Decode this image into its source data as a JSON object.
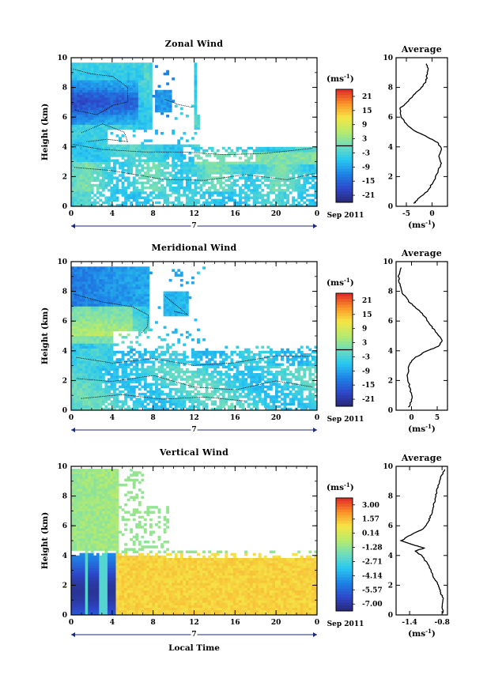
{
  "chart_data": [
    {
      "type": "heatmap",
      "title": "Zonal Wind",
      "ylabel": "Height (km)",
      "xlabel": "",
      "x_ticks": [
        "0",
        "4",
        "8",
        "12",
        "16",
        "20",
        "0"
      ],
      "y_ticks": [
        "0",
        "2",
        "4",
        "6",
        "8",
        "10"
      ],
      "xlim": [
        0,
        24
      ],
      "ylim": [
        0,
        10
      ],
      "date_marker": "7",
      "date_label": "Sep 2011",
      "colorbar": {
        "unit_base": "(ms",
        "unit_exp": "-1",
        "unit_close": ")",
        "ticks": [
          "21",
          "15",
          "9",
          "3",
          "-3",
          "-9",
          "-15",
          "-21"
        ],
        "range": [
          -24,
          24
        ],
        "zero_level": 0
      },
      "profile": {
        "title": "Average",
        "xlabel_base": "(ms",
        "xlabel_exp": "-1",
        "xlabel_close": ")",
        "x_ticks": [
          "-5",
          "0"
        ],
        "xlim": [
          -7,
          3
        ],
        "ylim": [
          0,
          10
        ],
        "y_ticks": [
          "0",
          "2",
          "4",
          "6",
          "8",
          "10"
        ],
        "points": [
          [
            -3.5,
            0.2
          ],
          [
            -2.8,
            0.5
          ],
          [
            -1.0,
            1.0
          ],
          [
            0.2,
            1.6
          ],
          [
            1.2,
            2.4
          ],
          [
            1.8,
            2.9
          ],
          [
            1.3,
            3.4
          ],
          [
            1.8,
            3.9
          ],
          [
            1.0,
            4.3
          ],
          [
            -0.5,
            4.6
          ],
          [
            -3.0,
            5.0
          ],
          [
            -5.0,
            5.5
          ],
          [
            -6.0,
            6.0
          ],
          [
            -6.2,
            6.6
          ],
          [
            -4.8,
            7.0
          ],
          [
            -3.5,
            7.5
          ],
          [
            -2.0,
            8.0
          ],
          [
            -1.2,
            8.4
          ],
          [
            -1.0,
            8.8
          ],
          [
            -0.8,
            9.2
          ],
          [
            -1.1,
            9.6
          ]
        ]
      }
    },
    {
      "type": "heatmap",
      "title": "Meridional Wind",
      "ylabel": "Height (km)",
      "xlabel": "",
      "x_ticks": [
        "0",
        "4",
        "8",
        "12",
        "16",
        "20",
        "0"
      ],
      "y_ticks": [
        "0",
        "2",
        "4",
        "6",
        "8",
        "10"
      ],
      "xlim": [
        0,
        24
      ],
      "ylim": [
        0,
        10
      ],
      "date_marker": "7",
      "date_label": "Sep 2011",
      "colorbar": {
        "unit_base": "(ms",
        "unit_exp": "-1",
        "unit_close": ")",
        "ticks": [
          "21",
          "15",
          "9",
          "3",
          "-3",
          "-9",
          "-15",
          "-21"
        ],
        "range": [
          -24,
          24
        ],
        "zero_level": 0
      },
      "profile": {
        "title": "Average",
        "xlabel_base": "(ms",
        "xlabel_exp": "-1",
        "xlabel_close": ")",
        "x_ticks": [
          "0",
          "5"
        ],
        "xlim": [
          -3,
          7
        ],
        "ylim": [
          0,
          10
        ],
        "y_ticks": [
          "0",
          "2",
          "4",
          "6",
          "8",
          "10"
        ],
        "points": [
          [
            -0.5,
            0.2
          ],
          [
            0.2,
            0.8
          ],
          [
            -0.3,
            1.5
          ],
          [
            -0.8,
            2.2
          ],
          [
            -0.5,
            3.0
          ],
          [
            0.5,
            3.5
          ],
          [
            2.5,
            3.9
          ],
          [
            5.2,
            4.3
          ],
          [
            6.0,
            4.7
          ],
          [
            4.8,
            5.2
          ],
          [
            3.8,
            5.7
          ],
          [
            2.8,
            6.2
          ],
          [
            1.2,
            6.8
          ],
          [
            -0.5,
            7.3
          ],
          [
            -1.8,
            7.9
          ],
          [
            -2.3,
            8.5
          ],
          [
            -2.5,
            9.0
          ],
          [
            -2.0,
            9.6
          ]
        ]
      }
    },
    {
      "type": "heatmap",
      "title": "Vertical Wind",
      "ylabel": "Height (km)",
      "xlabel": "Local Time",
      "x_ticks": [
        "0",
        "4",
        "8",
        "12",
        "16",
        "20",
        "0"
      ],
      "y_ticks": [
        "0",
        "2",
        "4",
        "6",
        "8",
        "10"
      ],
      "xlim": [
        0,
        24
      ],
      "ylim": [
        0,
        10
      ],
      "date_marker": "7",
      "date_label": "Sep 2011",
      "colorbar": {
        "unit_base": "(ms",
        "unit_exp": "-1",
        "unit_close": ")",
        "ticks": [
          "3.00",
          "1.57",
          "0.14",
          "-1.28",
          "-2.71",
          "-4.14",
          "-5.57",
          "-7.00"
        ],
        "range": [
          -7.7,
          3.7
        ]
      },
      "profile": {
        "title": "Average",
        "xlabel_base": "(ms",
        "xlabel_exp": "-1",
        "xlabel_close": ")",
        "x_ticks": [
          "-1.4",
          "-0.8"
        ],
        "xlim": [
          -1.65,
          -0.7
        ],
        "ylim": [
          0,
          10
        ],
        "y_ticks": [
          "0",
          "2",
          "4",
          "6",
          "8",
          "10"
        ],
        "points": [
          [
            -0.78,
            0.1
          ],
          [
            -0.8,
            0.6
          ],
          [
            -0.77,
            1.1
          ],
          [
            -0.83,
            1.5
          ],
          [
            -0.87,
            2.0
          ],
          [
            -0.95,
            2.5
          ],
          [
            -1.0,
            3.0
          ],
          [
            -1.08,
            3.5
          ],
          [
            -1.18,
            4.0
          ],
          [
            -1.3,
            4.3
          ],
          [
            -1.12,
            4.5
          ],
          [
            -1.32,
            4.7
          ],
          [
            -1.55,
            5.0
          ],
          [
            -1.42,
            5.3
          ],
          [
            -1.15,
            5.8
          ],
          [
            -1.05,
            6.3
          ],
          [
            -1.0,
            6.8
          ],
          [
            -0.95,
            7.4
          ],
          [
            -0.92,
            8.0
          ],
          [
            -0.88,
            8.6
          ],
          [
            -0.83,
            9.2
          ],
          [
            -0.75,
            9.8
          ]
        ]
      }
    }
  ]
}
